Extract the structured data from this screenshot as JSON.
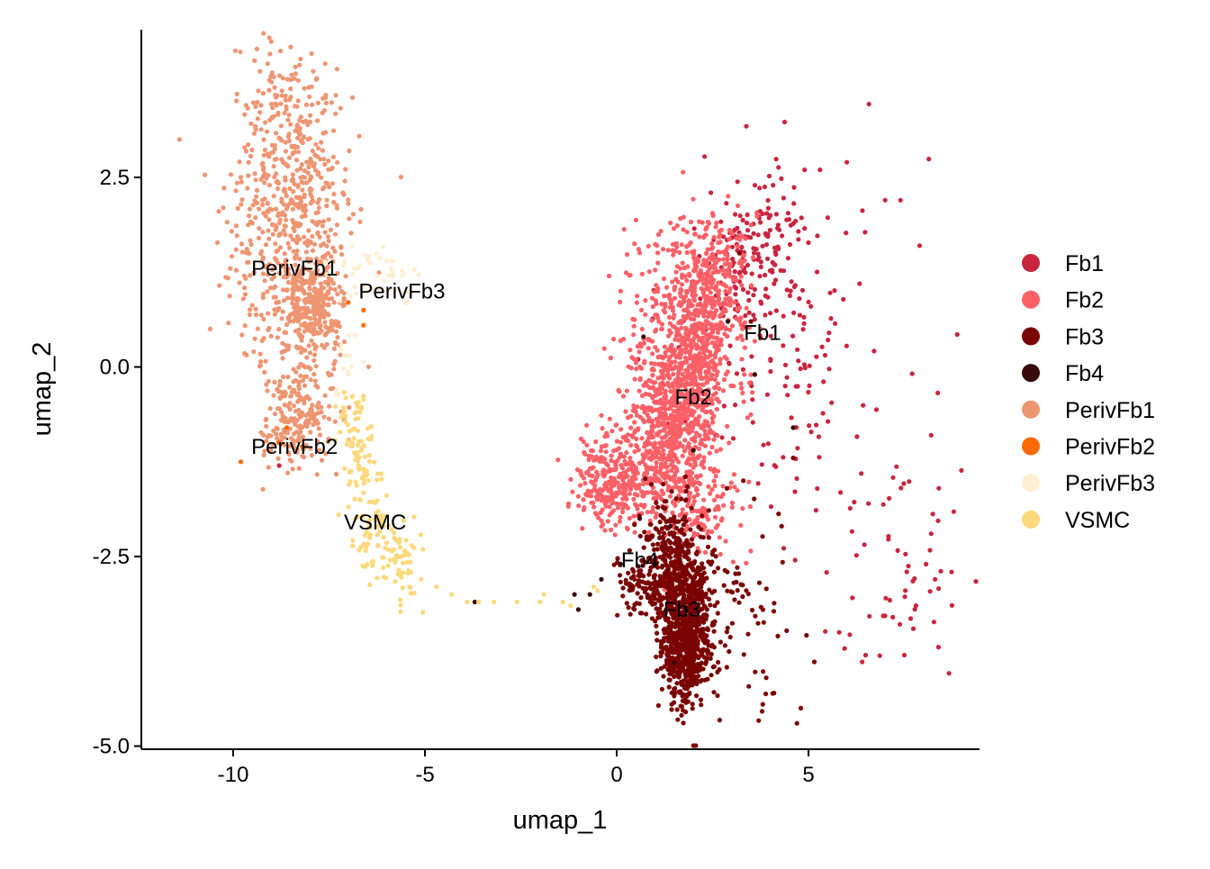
{
  "chart_data": {
    "type": "scatter",
    "title": "",
    "xlabel": "umap_1",
    "ylabel": "umap_2",
    "xlim": [
      -12.4,
      9.3
    ],
    "ylim": [
      -5.1,
      5.2
    ],
    "x_ticks": [
      {
        "value": -10,
        "label": "-10"
      },
      {
        "value": -5,
        "label": "-5"
      },
      {
        "value": 0,
        "label": "0"
      },
      {
        "value": 5,
        "label": "5"
      }
    ],
    "y_ticks": [
      {
        "value": 2.5,
        "label": "2.5"
      },
      {
        "value": 0.0,
        "label": "0.0"
      },
      {
        "value": -2.5,
        "label": "-2.5"
      },
      {
        "value": -5.0,
        "label": "-5.0"
      }
    ],
    "grid": false,
    "legend_position": "right",
    "series": [
      {
        "name": "Fb1",
        "color": "#C9253F",
        "cloud": [
          {
            "cx": 3.4,
            "cy": 1.3,
            "sx": 0.5,
            "sy": 0.4,
            "n": 90
          },
          {
            "cx": 4.2,
            "cy": 0.5,
            "sx": 1.4,
            "sy": 1.1,
            "n": 170
          },
          {
            "cx": 4.0,
            "cy": 1.9,
            "sx": 0.5,
            "sy": 0.3,
            "n": 40
          },
          {
            "cx": 6.8,
            "cy": -2.1,
            "sx": 1.0,
            "sy": 0.8,
            "n": 40
          },
          {
            "cx": 7.8,
            "cy": -3.0,
            "sx": 0.5,
            "sy": 0.3,
            "n": 20
          }
        ],
        "outliers": [
          [
            4.9,
            2.6
          ],
          [
            5.3,
            2.6
          ],
          [
            6.0,
            2.7
          ],
          [
            7.4,
            2.2
          ],
          [
            7.0,
            2.2
          ],
          [
            7.9,
            1.6
          ],
          [
            8.2,
            -0.9
          ],
          [
            8.4,
            -1.6
          ],
          [
            8.2,
            -2.2
          ],
          [
            8.3,
            -2.8
          ],
          [
            7.2,
            -3.3
          ],
          [
            7.5,
            -3.8
          ],
          [
            5.8,
            -3.5
          ],
          [
            -8.8,
            -1.3
          ]
        ]
      },
      {
        "name": "Fb2",
        "color": "#FB6067",
        "cloud": [
          {
            "cx": 2.4,
            "cy": 1.0,
            "sx": 0.5,
            "sy": 0.5,
            "n": 350
          },
          {
            "cx": 1.9,
            "cy": 0.0,
            "sx": 0.55,
            "sy": 0.5,
            "n": 500
          },
          {
            "cx": 1.3,
            "cy": -0.9,
            "sx": 0.55,
            "sy": 0.5,
            "n": 500
          },
          {
            "cx": 0.0,
            "cy": -1.5,
            "sx": 0.55,
            "sy": 0.3,
            "n": 300
          },
          {
            "cx": 1.0,
            "cy": 0.8,
            "sx": 0.5,
            "sy": 0.6,
            "n": 100
          },
          {
            "cx": 2.2,
            "cy": -1.8,
            "sx": 0.5,
            "sy": 0.4,
            "n": 140
          }
        ],
        "outliers": [
          [
            1.4,
            1.9
          ],
          [
            2.6,
            1.9
          ],
          [
            -0.2,
            1.2
          ],
          [
            0.1,
            1.0
          ]
        ]
      },
      {
        "name": "Fb3",
        "color": "#7A0403",
        "cloud": [
          {
            "cx": 1.8,
            "cy": -3.7,
            "sx": 0.3,
            "sy": 0.35,
            "n": 600
          },
          {
            "cx": 1.7,
            "cy": -2.9,
            "sx": 0.35,
            "sy": 0.3,
            "n": 350
          },
          {
            "cx": 1.4,
            "cy": -2.3,
            "sx": 0.4,
            "sy": 0.3,
            "n": 160
          },
          {
            "cx": 2.8,
            "cy": -3.4,
            "sx": 0.9,
            "sy": 0.7,
            "n": 110
          },
          {
            "cx": 0.7,
            "cy": -2.9,
            "sx": 0.4,
            "sy": 0.25,
            "n": 90
          }
        ],
        "outliers": [
          [
            4.8,
            -4.5
          ],
          [
            4.7,
            -4.7
          ],
          [
            4.1,
            -4.3
          ],
          [
            3.9,
            -4.1
          ],
          [
            4.3,
            -2.1
          ],
          [
            3.3,
            -1.5
          ],
          [
            4.6,
            -1.2
          ],
          [
            3.5,
            0.6
          ],
          [
            3.2,
            1.5
          ]
        ]
      },
      {
        "name": "Fb4",
        "color": "#3A0A0A",
        "cloud": [],
        "outliers": [
          [
            0.7,
            0.4
          ],
          [
            -0.4,
            -2.8
          ],
          [
            -0.7,
            -3.0
          ],
          [
            -1.1,
            -3.0
          ],
          [
            -1.0,
            -3.2
          ],
          [
            -3.7,
            -3.1
          ],
          [
            1.5,
            -3.9
          ],
          [
            1.8,
            -3.2
          ],
          [
            1.0,
            -2.6
          ],
          [
            0.1,
            -2.6
          ],
          [
            1.4,
            -2.1
          ],
          [
            2.0,
            -1.1
          ],
          [
            4.6,
            -0.8
          ],
          [
            3.6,
            -0.1
          ],
          [
            2.9,
            0.6
          ],
          [
            0.6,
            -2.0
          ]
        ]
      },
      {
        "name": "PerivFb1",
        "color": "#EE9572",
        "cloud": [
          {
            "cx": -8.3,
            "cy": 2.1,
            "sx": 0.7,
            "sy": 0.5,
            "n": 300
          },
          {
            "cx": -8.7,
            "cy": 3.3,
            "sx": 0.6,
            "sy": 0.45,
            "n": 170
          },
          {
            "cx": -7.9,
            "cy": 0.8,
            "sx": 0.45,
            "sy": 0.35,
            "n": 330
          },
          {
            "cx": -9.4,
            "cy": 1.1,
            "sx": 0.45,
            "sy": 0.6,
            "n": 90
          },
          {
            "cx": -8.2,
            "cy": -0.5,
            "sx": 0.45,
            "sy": 0.4,
            "n": 200
          },
          {
            "cx": -8.8,
            "cy": -1.0,
            "sx": 0.3,
            "sy": 0.15,
            "n": 30
          }
        ],
        "outliers": [
          [
            -9.1,
            4.0
          ],
          [
            -9.3,
            3.9
          ],
          [
            -7.6,
            4.0
          ],
          [
            -11.4,
            3.0
          ],
          [
            -9.8,
            2.5
          ],
          [
            -10.6,
            0.5
          ]
        ]
      },
      {
        "name": "PerivFb2",
        "color": "#FC6A03",
        "cloud": [],
        "outliers": [
          [
            -9.8,
            -1.25
          ],
          [
            -8.8,
            -1.0
          ],
          [
            -8.6,
            -0.8
          ],
          [
            -8.2,
            -1.05
          ],
          [
            -6.6,
            0.75
          ],
          [
            -6.6,
            0.55
          ],
          [
            -7.0,
            0.85
          ]
        ]
      },
      {
        "name": "PerivFb3",
        "color": "#FEEFD2",
        "cloud": [
          {
            "cx": -6.3,
            "cy": 1.2,
            "sx": 0.6,
            "sy": 0.2,
            "n": 45
          },
          {
            "cx": -7.0,
            "cy": 0.2,
            "sx": 0.3,
            "sy": 0.3,
            "n": 15
          }
        ],
        "outliers": [
          [
            -7.3,
            -0.3
          ],
          [
            -7.0,
            -0.1
          ]
        ]
      },
      {
        "name": "VSMC",
        "color": "#FCD97C",
        "cloud": [
          {
            "cx": -6.7,
            "cy": -1.3,
            "sx": 0.2,
            "sy": 0.3,
            "n": 60
          },
          {
            "cx": -6.4,
            "cy": -2.0,
            "sx": 0.3,
            "sy": 0.3,
            "n": 60
          },
          {
            "cx": -5.8,
            "cy": -2.6,
            "sx": 0.35,
            "sy": 0.25,
            "n": 60
          },
          {
            "cx": -6.9,
            "cy": -0.6,
            "sx": 0.2,
            "sy": 0.2,
            "n": 25
          }
        ],
        "outliers": [
          [
            -4.7,
            -2.9
          ],
          [
            -4.3,
            -3.0
          ],
          [
            -3.9,
            -3.1
          ],
          [
            -3.6,
            -3.1
          ],
          [
            -3.2,
            -3.1
          ],
          [
            -2.6,
            -3.1
          ],
          [
            -2.0,
            -3.1
          ],
          [
            -1.9,
            -3.0
          ],
          [
            -1.4,
            -3.1
          ],
          [
            -1.2,
            -3.15
          ],
          [
            -0.6,
            -2.9
          ],
          [
            -0.5,
            -2.95
          ],
          [
            -5.4,
            -2.9
          ],
          [
            -5.1,
            -2.8
          ]
        ]
      }
    ],
    "cluster_labels": [
      {
        "text": "Fb1",
        "x": 3.8,
        "y": 0.45
      },
      {
        "text": "Fb2",
        "x": 2.0,
        "y": -0.4
      },
      {
        "text": "Fb3",
        "x": 1.7,
        "y": -3.2
      },
      {
        "text": "Fb4",
        "x": 0.6,
        "y": -2.55
      },
      {
        "text": "PerivFb1",
        "x": -8.4,
        "y": 1.3
      },
      {
        "text": "PerivFb2",
        "x": -8.4,
        "y": -1.05
      },
      {
        "text": "PerivFb3",
        "x": -5.6,
        "y": 1.0
      },
      {
        "text": "VSMC",
        "x": -6.3,
        "y": -2.05
      }
    ]
  }
}
